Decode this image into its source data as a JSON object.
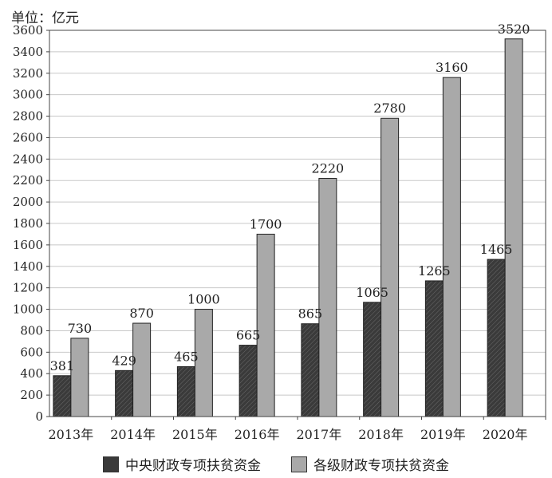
{
  "unit_label": "单位：亿元",
  "chart_data": {
    "type": "bar",
    "categories": [
      "2013年",
      "2014年",
      "2015年",
      "2016年",
      "2017年",
      "2018年",
      "2019年",
      "2020年"
    ],
    "series": [
      {
        "name": "中央财政专项扶贫资金",
        "values": [
          381,
          429,
          465,
          665,
          865,
          1065,
          1265,
          1465
        ],
        "color": "#3a3a3a"
      },
      {
        "name": "各级财政专项扶贫资金",
        "values": [
          730,
          870,
          1000,
          1700,
          2220,
          2780,
          3160,
          3520
        ],
        "color": "#a9a9a9"
      }
    ],
    "ylim": [
      0,
      3600
    ],
    "yticks": [
      0,
      200,
      400,
      600,
      800,
      1000,
      1200,
      1400,
      1600,
      1800,
      2000,
      2200,
      2400,
      2600,
      2800,
      3000,
      3200,
      3400,
      3600
    ],
    "xlabel": "",
    "ylabel": "",
    "grid": true,
    "legend_position": "bottom"
  }
}
